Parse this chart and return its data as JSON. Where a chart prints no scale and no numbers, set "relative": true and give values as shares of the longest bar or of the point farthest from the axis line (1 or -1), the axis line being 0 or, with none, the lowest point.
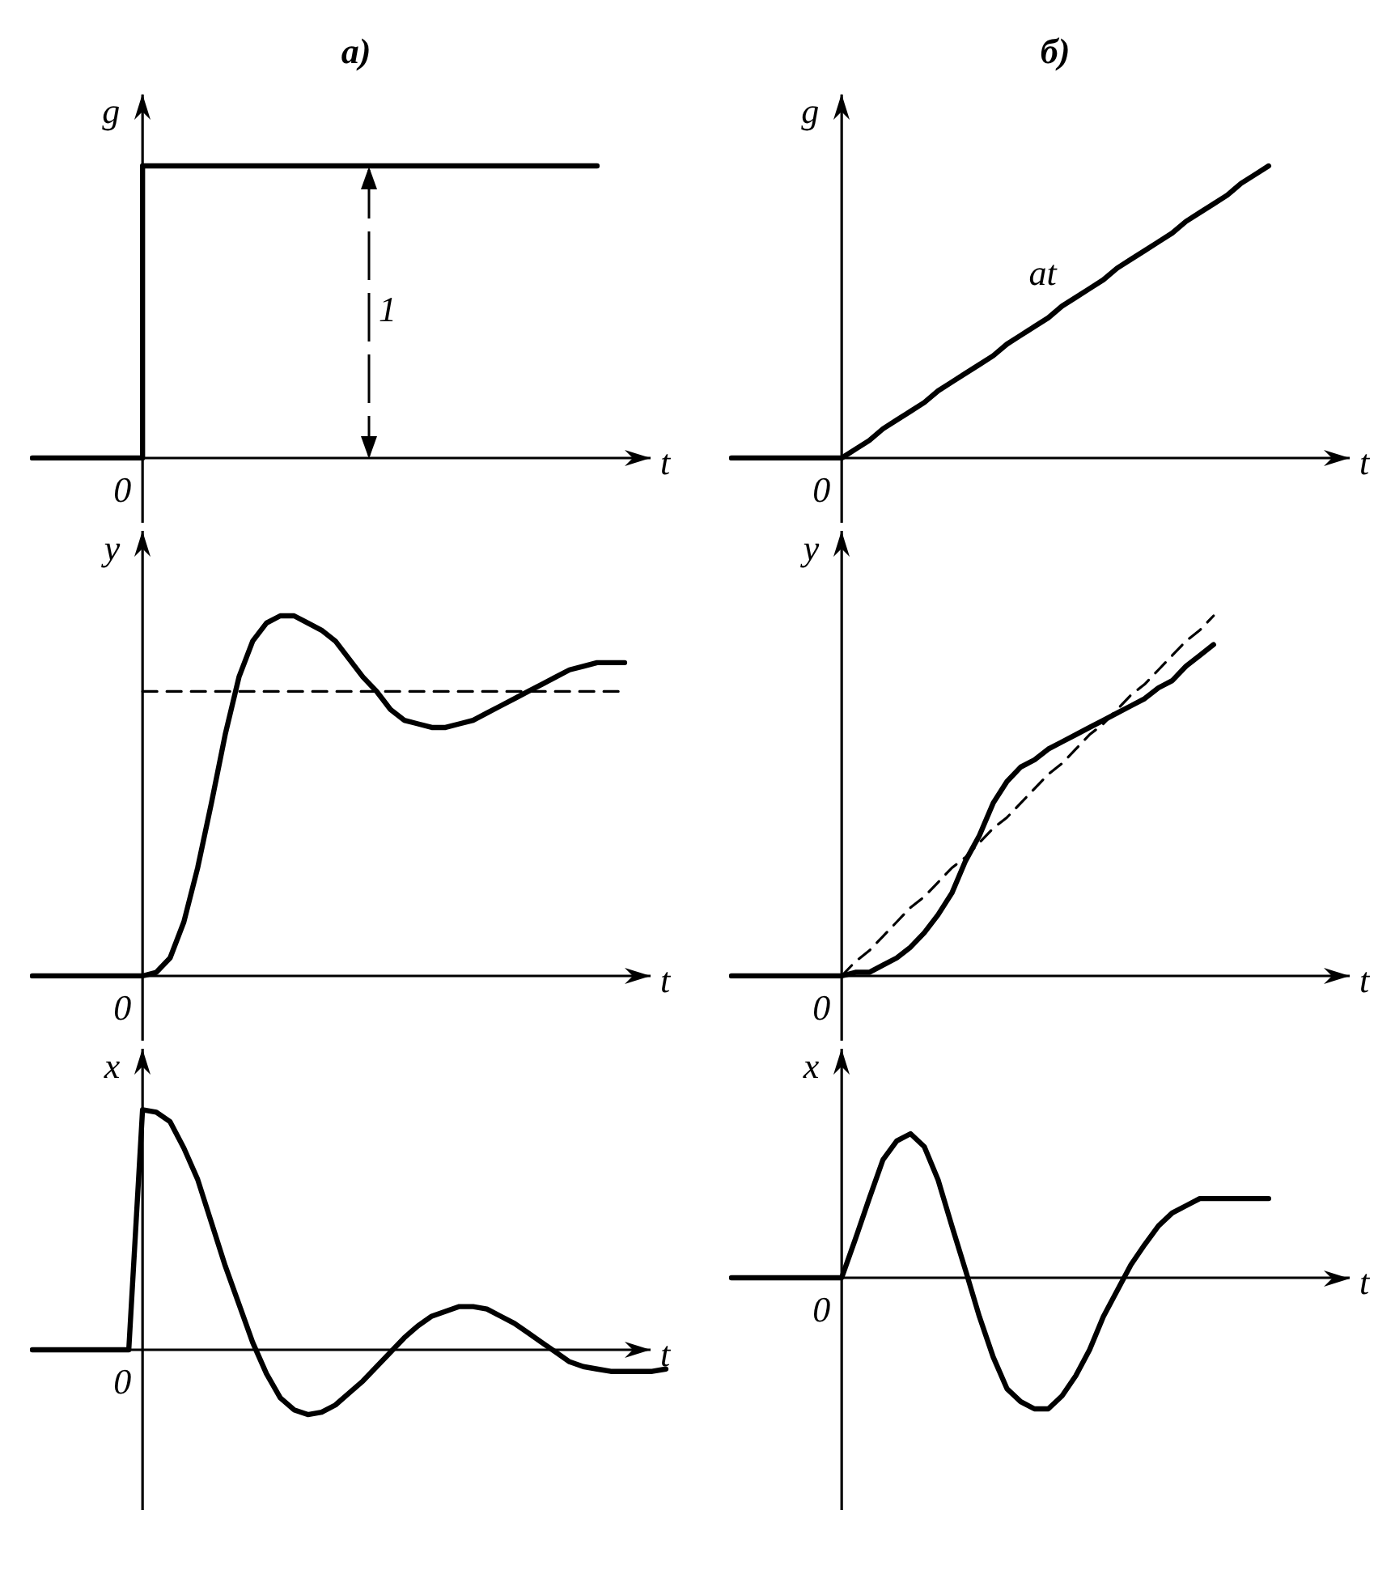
{
  "chart_data": [
    {
      "type": "step",
      "title": "а)",
      "xlabel": "t",
      "ylabel": "g",
      "relative": true,
      "marker": "none",
      "legend": false,
      "annotations": [
        "0",
        "1"
      ],
      "categories": [
        null,
        null,
        null,
        null,
        null,
        null,
        null,
        null,
        null,
        null,
        null,
        null,
        null,
        null,
        null,
        null,
        null,
        null,
        null,
        null,
        null,
        null,
        null,
        null,
        null,
        null,
        null,
        null,
        null,
        null,
        null,
        null,
        null,
        null,
        null,
        null,
        null,
        null,
        null,
        null,
        null,
        null,
        null,
        null,
        null,
        null,
        null,
        null
      ],
      "series": [
        {
          "color": "#000000",
          "line_style": "solid",
          "values": [
            0,
            0,
            0,
            0,
            0,
            0,
            0,
            0,
            1,
            1,
            1,
            1,
            1,
            1,
            1,
            1,
            1,
            1,
            1,
            1,
            1,
            1,
            1,
            1,
            1,
            1,
            1,
            1,
            1,
            1,
            1,
            1,
            1,
            1,
            1,
            1,
            1,
            1,
            1,
            1,
            1,
            1,
            null,
            null,
            null,
            null,
            null,
            null
          ]
        }
      ]
    },
    {
      "type": "line",
      "title": "б)",
      "xlabel": "t",
      "ylabel": "g",
      "relative": true,
      "marker": "none",
      "legend": false,
      "annotations": [
        "0"
      ],
      "categories": [
        null,
        null,
        null,
        null,
        null,
        null,
        null,
        null,
        null,
        null,
        null,
        null,
        null,
        null,
        null,
        null,
        null,
        null,
        null,
        null,
        null,
        null,
        null,
        null,
        null,
        null,
        null,
        null,
        null,
        null,
        null,
        null,
        null,
        null,
        null,
        null,
        null,
        null,
        null,
        null,
        null,
        null,
        null,
        null,
        null,
        null,
        null,
        null
      ],
      "series": [
        {
          "name": "at",
          "color": "#000000",
          "line_style": "solid",
          "values": [
            0,
            0,
            0,
            0,
            0,
            0,
            0,
            0,
            0,
            0.03,
            0.06,
            0.1,
            0.13,
            0.16,
            0.19,
            0.23,
            0.26,
            0.29,
            0.32,
            0.35,
            0.39,
            0.42,
            0.45,
            0.48,
            0.52,
            0.55,
            0.58,
            0.61,
            0.65,
            0.68,
            0.71,
            0.74,
            0.77,
            0.81,
            0.84,
            0.87,
            0.9,
            0.94,
            0.97,
            1,
            null,
            null,
            null,
            null,
            null,
            null,
            null,
            null
          ]
        }
      ]
    },
    {
      "type": "line",
      "xlabel": "t",
      "ylabel": "y",
      "relative": true,
      "marker": "none",
      "legend": false,
      "annotations": [
        "0"
      ],
      "categories": [
        null,
        null,
        null,
        null,
        null,
        null,
        null,
        null,
        null,
        null,
        null,
        null,
        null,
        null,
        null,
        null,
        null,
        null,
        null,
        null,
        null,
        null,
        null,
        null,
        null,
        null,
        null,
        null,
        null,
        null,
        null,
        null,
        null,
        null,
        null,
        null,
        null,
        null,
        null,
        null,
        null,
        null,
        null,
        null,
        null,
        null,
        null,
        null
      ],
      "series": [
        {
          "color": "#000000",
          "line_style": "solid",
          "values": [
            0,
            0,
            0,
            0,
            0,
            0,
            0,
            0,
            0,
            0.01,
            0.05,
            0.15,
            0.3,
            0.48,
            0.67,
            0.83,
            0.93,
            0.98,
            1,
            1,
            0.98,
            0.96,
            0.93,
            0.88,
            0.83,
            0.79,
            0.74,
            0.71,
            0.7,
            0.69,
            0.69,
            0.7,
            0.71,
            0.73,
            0.75,
            0.77,
            0.79,
            0.81,
            0.83,
            0.85,
            0.86,
            0.87,
            0.87,
            0.87,
            null,
            null,
            null,
            null
          ]
        },
        {
          "color": "#000000",
          "line_style": "dashed",
          "values": [
            null,
            null,
            null,
            null,
            null,
            null,
            null,
            null,
            0.79,
            0.79,
            0.79,
            0.79,
            0.79,
            0.79,
            0.79,
            0.79,
            0.79,
            0.79,
            0.79,
            0.79,
            0.79,
            0.79,
            0.79,
            0.79,
            0.79,
            0.79,
            0.79,
            0.79,
            0.79,
            0.79,
            0.79,
            0.79,
            0.79,
            0.79,
            0.79,
            0.79,
            0.79,
            0.79,
            0.79,
            0.79,
            0.79,
            0.79,
            0.79,
            0.79,
            null,
            null,
            null,
            null
          ]
        }
      ]
    },
    {
      "type": "line",
      "xlabel": "t",
      "ylabel": "y",
      "relative": true,
      "marker": "none",
      "legend": false,
      "annotations": [
        "0"
      ],
      "categories": [
        null,
        null,
        null,
        null,
        null,
        null,
        null,
        null,
        null,
        null,
        null,
        null,
        null,
        null,
        null,
        null,
        null,
        null,
        null,
        null,
        null,
        null,
        null,
        null,
        null,
        null,
        null,
        null,
        null,
        null,
        null,
        null,
        null,
        null,
        null,
        null,
        null,
        null,
        null,
        null,
        null,
        null,
        null,
        null,
        null,
        null,
        null,
        null
      ],
      "series": [
        {
          "color": "#000000",
          "line_style": "solid",
          "values": [
            0,
            0,
            0,
            0,
            0,
            0,
            0,
            0,
            0,
            0.01,
            0.01,
            0.03,
            0.05,
            0.08,
            0.12,
            0.17,
            0.23,
            0.32,
            0.39,
            0.48,
            0.54,
            0.58,
            0.6,
            0.63,
            0.65,
            0.67,
            0.69,
            0.71,
            0.73,
            0.75,
            0.77,
            0.8,
            0.82,
            0.86,
            0.89,
            0.92,
            null,
            null,
            null,
            null,
            null,
            null,
            null,
            null,
            null,
            null,
            null,
            null
          ]
        },
        {
          "color": "#000000",
          "line_style": "dashed",
          "values": [
            null,
            null,
            null,
            null,
            null,
            null,
            null,
            null,
            0,
            0.04,
            0.07,
            0.11,
            0.15,
            0.19,
            0.22,
            0.26,
            0.3,
            0.33,
            0.37,
            0.41,
            0.44,
            0.48,
            0.52,
            0.56,
            0.59,
            0.63,
            0.67,
            0.7,
            0.74,
            0.78,
            0.81,
            0.85,
            0.89,
            0.93,
            0.96,
            1,
            null,
            null,
            null,
            null,
            null,
            null,
            null,
            null,
            null,
            null,
            null,
            null
          ]
        }
      ]
    },
    {
      "type": "line",
      "xlabel": "t",
      "ylabel": "x",
      "relative": true,
      "marker": "none",
      "legend": false,
      "annotations": [
        "0"
      ],
      "categories": [
        null,
        null,
        null,
        null,
        null,
        null,
        null,
        null,
        null,
        null,
        null,
        null,
        null,
        null,
        null,
        null,
        null,
        null,
        null,
        null,
        null,
        null,
        null,
        null,
        null,
        null,
        null,
        null,
        null,
        null,
        null,
        null,
        null,
        null,
        null,
        null,
        null,
        null,
        null,
        null,
        null,
        null,
        null,
        null,
        null,
        null,
        null,
        null
      ],
      "series": [
        {
          "color": "#000000",
          "line_style": "solid",
          "values": [
            0,
            0,
            0,
            0,
            0,
            0,
            0,
            0,
            1,
            0.99,
            0.95,
            0.84,
            0.71,
            0.53,
            0.35,
            0.19,
            0.03,
            -0.1,
            -0.2,
            -0.25,
            -0.27,
            -0.26,
            -0.23,
            -0.18,
            -0.13,
            -0.07,
            -0.01,
            0.05,
            0.1,
            0.14,
            0.16,
            0.18,
            0.18,
            0.17,
            0.14,
            0.11,
            0.07,
            0.03,
            -0.01,
            -0.05,
            -0.07,
            -0.08,
            -0.09,
            -0.09,
            -0.09,
            -0.09,
            -0.08,
            null
          ]
        }
      ]
    },
    {
      "type": "line",
      "xlabel": "t",
      "ylabel": "x",
      "relative": true,
      "marker": "none",
      "legend": false,
      "annotations": [
        "0"
      ],
      "categories": [
        null,
        null,
        null,
        null,
        null,
        null,
        null,
        null,
        null,
        null,
        null,
        null,
        null,
        null,
        null,
        null,
        null,
        null,
        null,
        null,
        null,
        null,
        null,
        null,
        null,
        null,
        null,
        null,
        null,
        null,
        null,
        null,
        null,
        null,
        null,
        null,
        null,
        null,
        null,
        null,
        null,
        null,
        null,
        null,
        null,
        null,
        null,
        null
      ],
      "series": [
        {
          "color": "#000000",
          "line_style": "solid",
          "values": [
            0,
            0,
            0,
            0,
            0,
            0,
            0,
            0,
            0,
            0.27,
            0.55,
            0.82,
            0.95,
            1,
            0.91,
            0.68,
            0.36,
            0.05,
            -0.27,
            -0.55,
            -0.77,
            -0.86,
            -0.91,
            -0.91,
            -0.82,
            -0.68,
            -0.5,
            -0.27,
            -0.09,
            0.09,
            0.23,
            0.36,
            0.45,
            0.5,
            0.55,
            0.55,
            0.55,
            0.55,
            0.55,
            0.55,
            null,
            null,
            null,
            null,
            null,
            null,
            null,
            null
          ]
        }
      ]
    }
  ]
}
